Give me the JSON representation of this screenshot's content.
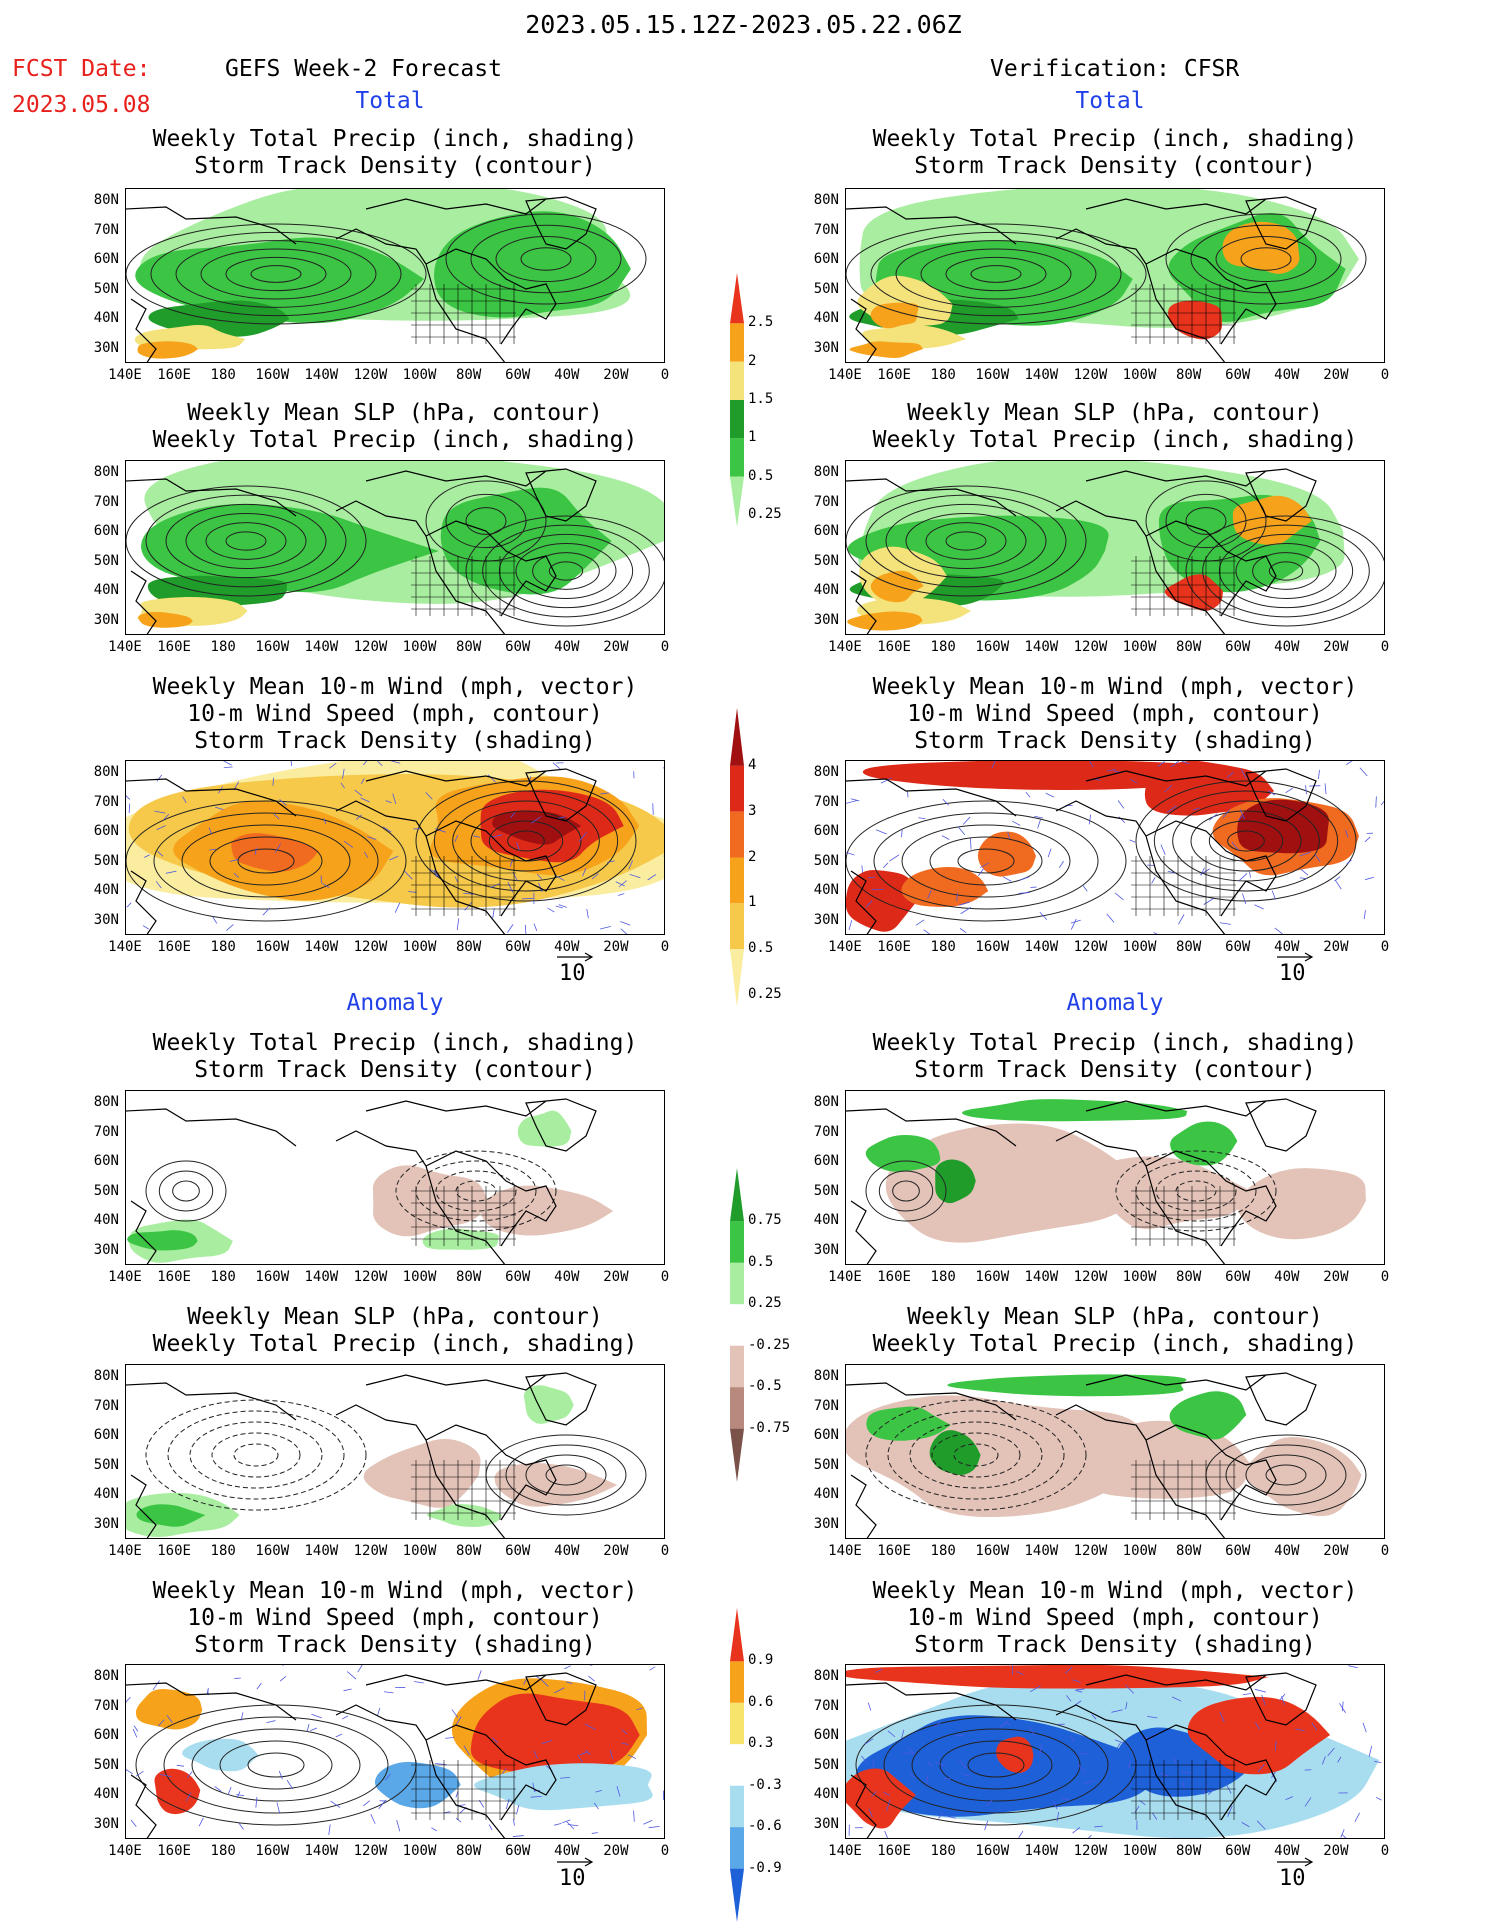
{
  "header": {
    "date_range": "2023.05.15.12Z-2023.05.22.06Z",
    "fcst_label": "FCST Date:",
    "fcst_date": "2023.05.08",
    "left_title": "GEFS Week-2 Forecast",
    "right_title": "Verification: CFSR",
    "total_label": "Total",
    "anomaly_label": "Anomaly"
  },
  "axes": {
    "lat_labels": [
      "80N",
      "70N",
      "60N",
      "50N",
      "40N",
      "30N"
    ],
    "lon_labels": [
      "140E",
      "160E",
      "180",
      "160W",
      "140W",
      "120W",
      "100W",
      "80W",
      "60W",
      "40W",
      "20W",
      "0"
    ]
  },
  "panel_titles": {
    "precip_storm": [
      "Weekly Total Precip (inch, shading)",
      "Storm Track Density (contour)"
    ],
    "slp_precip": [
      "Weekly Mean SLP (hPa, contour)",
      "Weekly Total Precip (inch, shading)"
    ],
    "wind_storm": [
      "Weekly Mean 10-m Wind (mph, vector)",
      "10-m Wind Speed (mph, contour)",
      "Storm Track Density (shading)"
    ]
  },
  "vector_ref": "10",
  "colorbars": {
    "total_precip": {
      "labels": [
        "2.5",
        "2",
        "1.5",
        "1",
        "0.5",
        "0.25"
      ],
      "colors": [
        "#e8341c",
        "#f7a21b",
        "#f4e27b",
        "#1f9c2a",
        "#3cc544",
        "#a9eea0"
      ]
    },
    "total_storm": {
      "labels": [
        "4",
        "3",
        "2",
        "1",
        "0.5",
        "0.25"
      ],
      "colors": [
        "#a01010",
        "#dd2a18",
        "#f06a20",
        "#f7a21b",
        "#f6c94a",
        "#fbeda0"
      ]
    },
    "anom_precip": {
      "labels": [
        "0.75",
        "0.5",
        "0.25",
        "-0.25",
        "-0.5",
        "-0.75"
      ],
      "colors": [
        "#1f9c2a",
        "#3cc544",
        "#a9eea0",
        "#ffffff",
        "#e3c3b8",
        "#b88a7d",
        "#7a5249"
      ]
    },
    "anom_storm": {
      "labels": [
        "0.9",
        "0.6",
        "0.3",
        "-0.3",
        "-0.6",
        "-0.9"
      ],
      "colors": [
        "#e8341c",
        "#f7a21b",
        "#f6e46c",
        "#ffffff",
        "#a8ddf0",
        "#5aa8e8",
        "#1e60d8"
      ]
    }
  }
}
